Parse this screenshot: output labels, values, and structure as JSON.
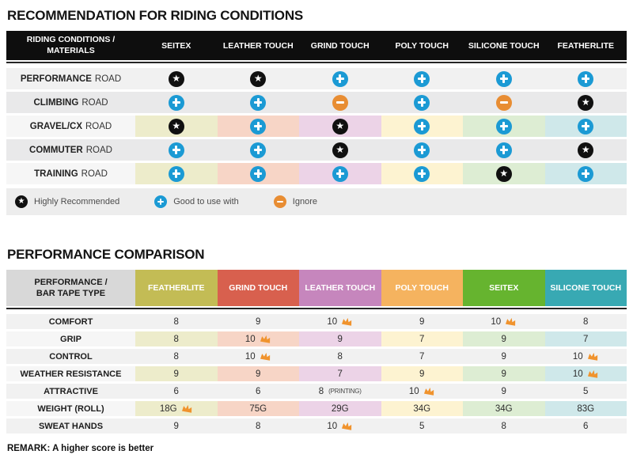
{
  "chart_data": [
    {
      "type": "table",
      "title": "RECOMMENDATION FOR RIDING CONDITIONS",
      "corner_header": [
        "RIDING CONDITIONS /",
        "MATERIALS"
      ],
      "columns": [
        "SEITEX",
        "LEATHER TOUCH",
        "GRIND TOUCH",
        "POLY TOUCH",
        "SILICONE TOUCH",
        "FEATHERLITE"
      ],
      "icon_meanings": {
        "star": "Highly Recommended",
        "plus": "Good to use with",
        "minus": "Ignore"
      },
      "rows": [
        {
          "label_bold": "PERFORMANCE",
          "label_rest": "ROAD",
          "tinted": false,
          "values": [
            "star",
            "star",
            "plus",
            "plus",
            "plus",
            "plus"
          ]
        },
        {
          "label_bold": "CLIMBING",
          "label_rest": "ROAD",
          "tinted": false,
          "values": [
            "plus",
            "plus",
            "minus",
            "plus",
            "minus",
            "star"
          ]
        },
        {
          "label_bold": "GRAVEL/CX",
          "label_rest": "ROAD",
          "tinted": true,
          "values": [
            "star",
            "plus",
            "star",
            "plus",
            "plus",
            "plus"
          ]
        },
        {
          "label_bold": "COMMUTER",
          "label_rest": "ROAD",
          "tinted": false,
          "values": [
            "plus",
            "plus",
            "star",
            "plus",
            "plus",
            "star"
          ]
        },
        {
          "label_bold": "TRAINING",
          "label_rest": "ROAD",
          "tinted": true,
          "values": [
            "plus",
            "plus",
            "plus",
            "plus",
            "star",
            "plus"
          ]
        }
      ],
      "legend": [
        {
          "icon": "star",
          "label": "Highly Recommended"
        },
        {
          "icon": "plus",
          "label": "Good to use with"
        },
        {
          "icon": "minus",
          "label": "Ignore"
        }
      ]
    },
    {
      "type": "table",
      "title": "PERFORMANCE COMPARISON",
      "corner_header": [
        "PERFORMANCE /",
        "BAR TAPE TYPE"
      ],
      "columns": [
        {
          "label": "FEATHERLITE",
          "color": "#c3bc55"
        },
        {
          "label": "GRIND TOUCH",
          "color": "#d8604e"
        },
        {
          "label": "LEATHER TOUCH",
          "color": "#c686bd"
        },
        {
          "label": "POLY TOUCH",
          "color": "#f5b35f"
        },
        {
          "label": "SEITEX",
          "color": "#66b42f"
        },
        {
          "label": "SILICONE TOUCH",
          "color": "#38a9b3"
        }
      ],
      "rows": [
        {
          "label": "COMFORT",
          "tinted": false,
          "cells": [
            {
              "value": "8"
            },
            {
              "value": "9"
            },
            {
              "value": "10",
              "crown": true
            },
            {
              "value": "9"
            },
            {
              "value": "10",
              "crown": true
            },
            {
              "value": "8"
            }
          ]
        },
        {
          "label": "GRIP",
          "tinted": true,
          "cells": [
            {
              "value": "8"
            },
            {
              "value": "10",
              "crown": true
            },
            {
              "value": "9"
            },
            {
              "value": "7"
            },
            {
              "value": "9"
            },
            {
              "value": "7"
            }
          ]
        },
        {
          "label": "CONTROL",
          "tinted": false,
          "cells": [
            {
              "value": "8"
            },
            {
              "value": "10",
              "crown": true
            },
            {
              "value": "8"
            },
            {
              "value": "7"
            },
            {
              "value": "9"
            },
            {
              "value": "10",
              "crown": true
            }
          ]
        },
        {
          "label": "WEATHER RESISTANCE",
          "tinted": true,
          "cells": [
            {
              "value": "9"
            },
            {
              "value": "9"
            },
            {
              "value": "7"
            },
            {
              "value": "9"
            },
            {
              "value": "9"
            },
            {
              "value": "10",
              "crown": true
            }
          ]
        },
        {
          "label": "ATTRACTIVE",
          "tinted": false,
          "cells": [
            {
              "value": "6"
            },
            {
              "value": "6"
            },
            {
              "value": "8",
              "note": "(PRINTING)"
            },
            {
              "value": "10",
              "crown": true
            },
            {
              "value": "9"
            },
            {
              "value": "5"
            }
          ]
        },
        {
          "label": "WEIGHT (ROLL)",
          "tinted": true,
          "cells": [
            {
              "value": "18G",
              "crown": true
            },
            {
              "value": "75G"
            },
            {
              "value": "29G"
            },
            {
              "value": "34G"
            },
            {
              "value": "34G"
            },
            {
              "value": "83G"
            }
          ]
        },
        {
          "label": "SWEAT HANDS",
          "tinted": false,
          "cells": [
            {
              "value": "9"
            },
            {
              "value": "8"
            },
            {
              "value": "10",
              "crown": true
            },
            {
              "value": "5"
            },
            {
              "value": "8"
            },
            {
              "value": "6"
            }
          ]
        }
      ],
      "remark": "REMARK: A higher score is better"
    }
  ],
  "colors": {
    "header_black": "#0e0e0e",
    "star_icon": "#101010",
    "plus_icon": "#1b9ad4",
    "minus_icon": "#e88d33",
    "crown_icon": "#f0932d",
    "column_tints": [
      "#edeccb",
      "#f7d5c6",
      "#ecd3e7",
      "#fdf3d1",
      "#ddedd3",
      "#cfe8ea"
    ],
    "plain_row_even": "#f1f1f1",
    "plain_row_odd": "#e9e9ea",
    "tinted_row_label": "#f6f6f6"
  }
}
